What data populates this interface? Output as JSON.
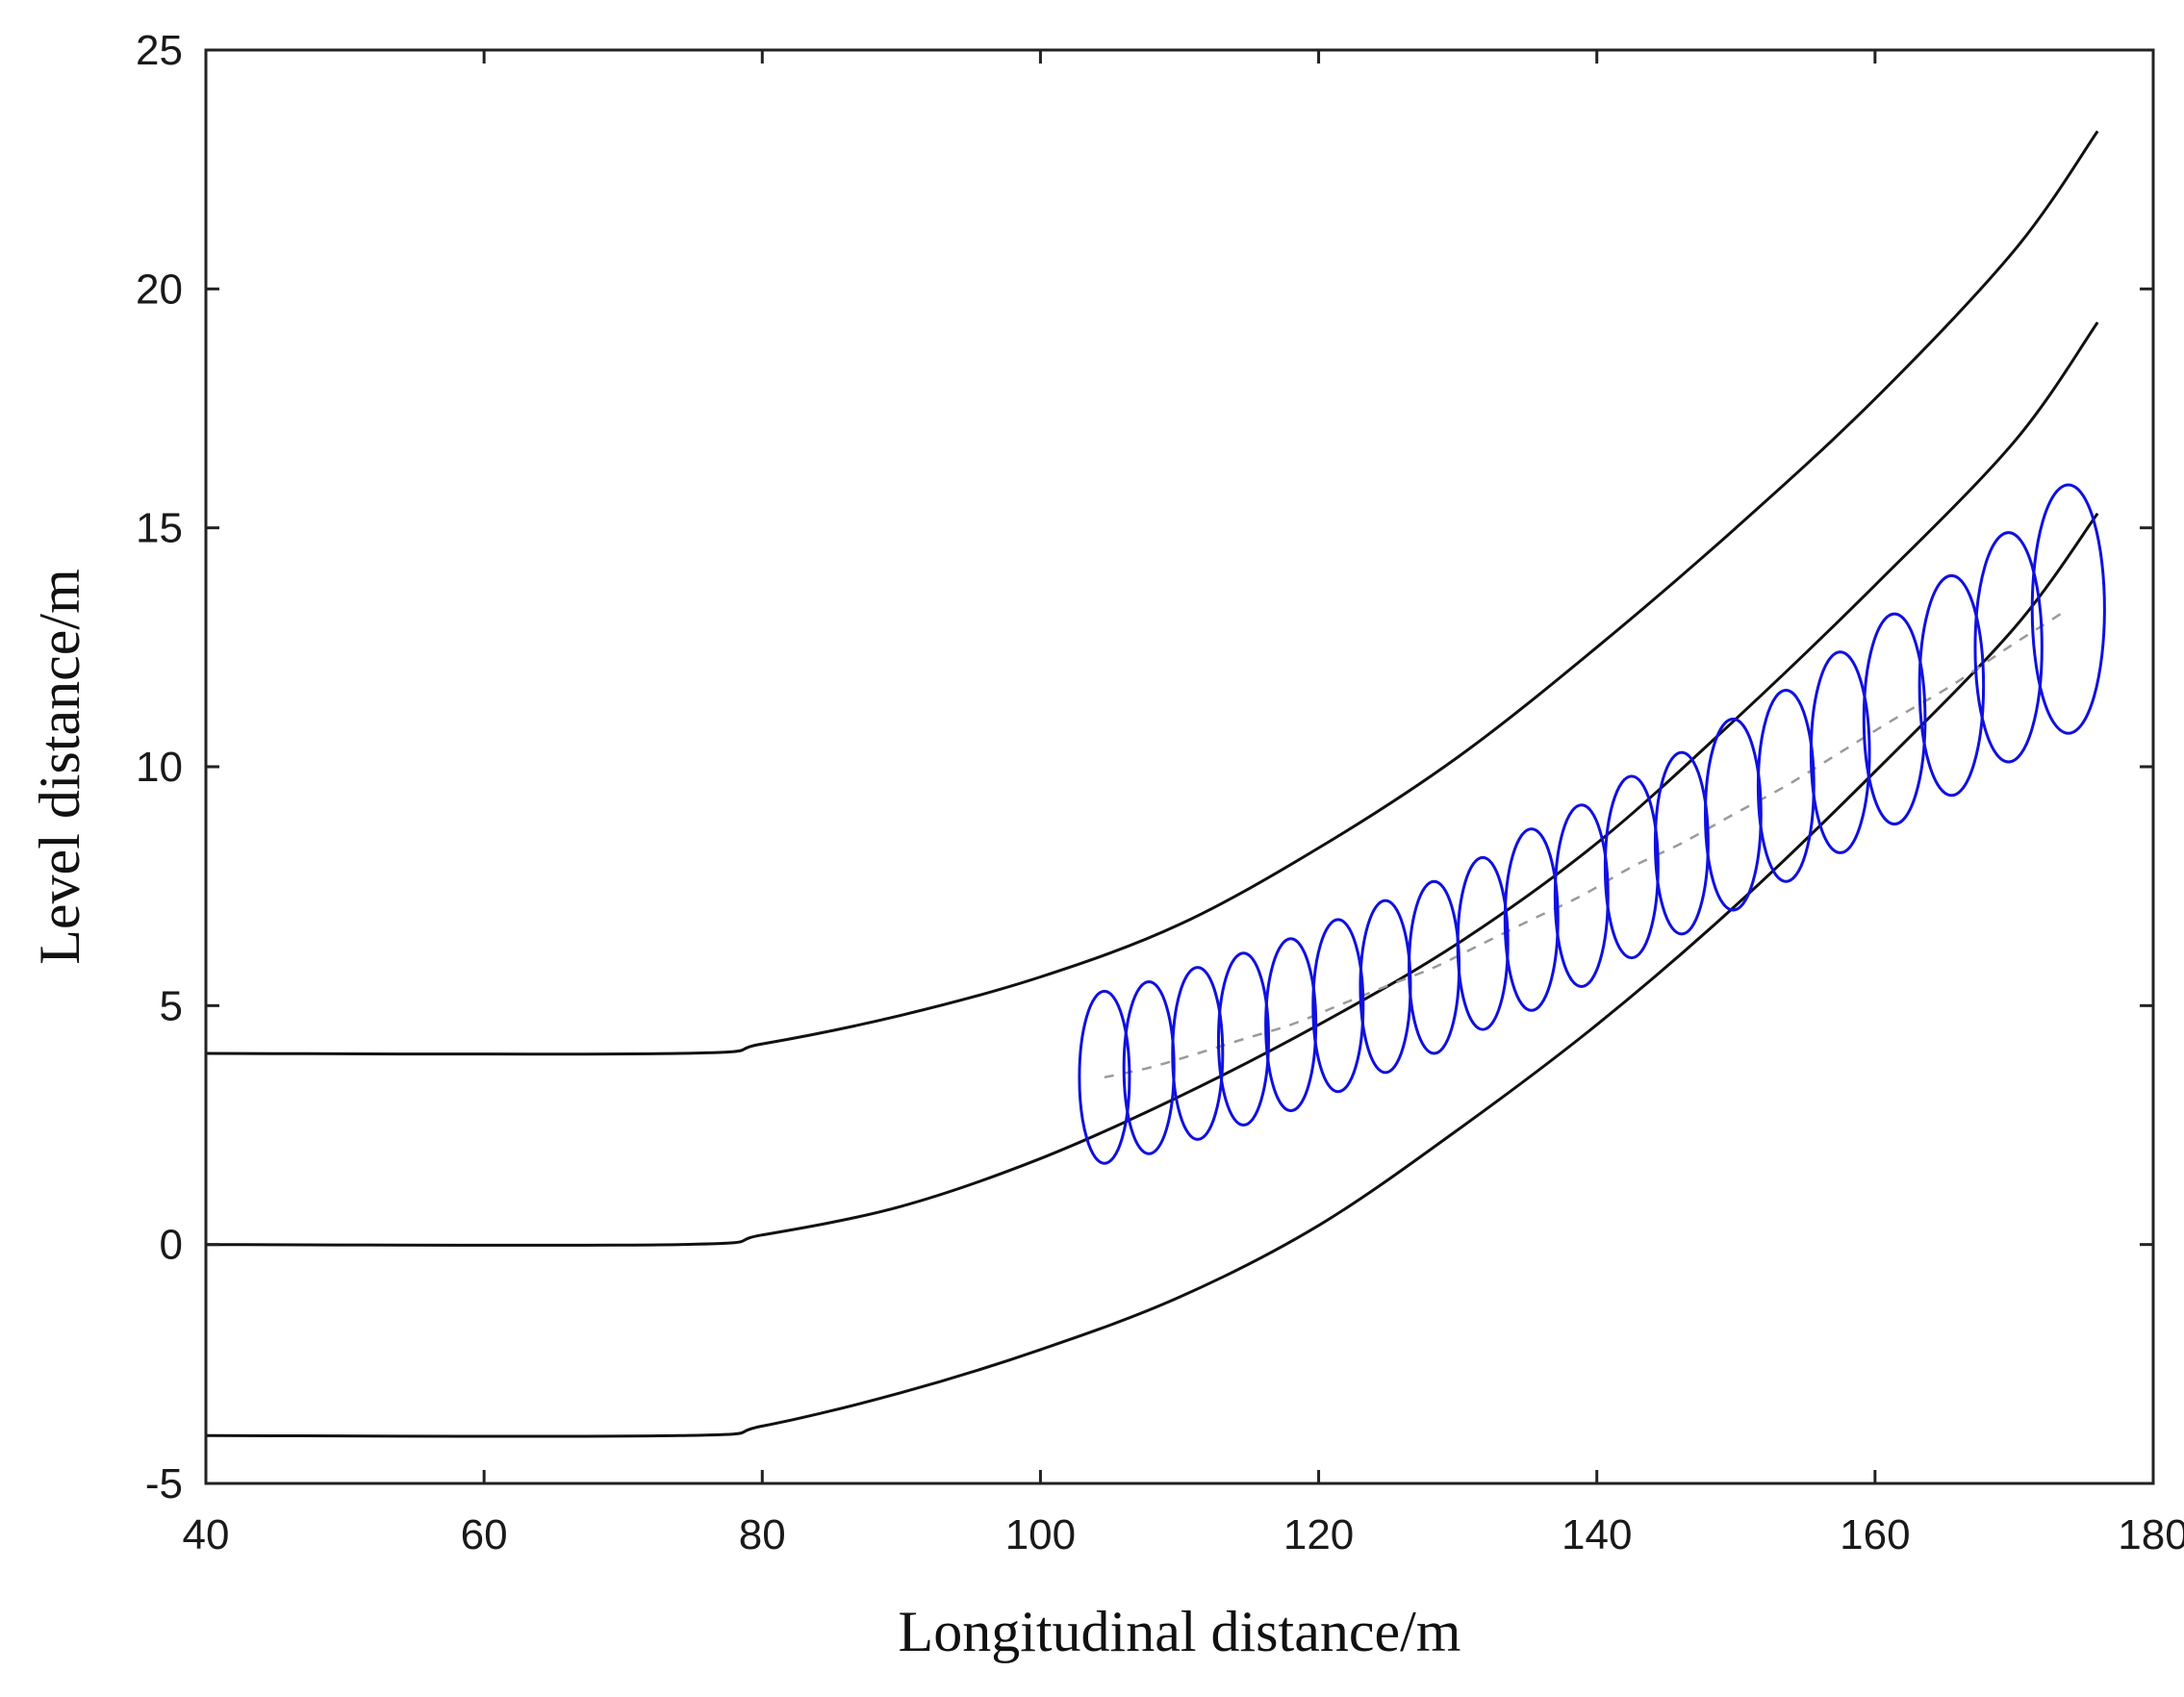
{
  "chart_data": {
    "type": "line",
    "title": "",
    "xlabel": "Longitudinal distance/m",
    "ylabel": "Level distance/m",
    "xlim": [
      40,
      180
    ],
    "ylim": [
      -5,
      25
    ],
    "xticks": [
      40,
      60,
      80,
      100,
      120,
      140,
      160,
      180
    ],
    "yticks": [
      -5,
      0,
      5,
      10,
      15,
      20,
      25
    ],
    "grid": false,
    "legend": "none",
    "colors": {
      "lanes": "#111111",
      "circles": "#1010e0",
      "path": "#9a9a9a",
      "axes": "#222222"
    },
    "lane_lines": [
      {
        "x": [
          40,
          74,
          80,
          90,
          100,
          110,
          120,
          130,
          140,
          150,
          160,
          170,
          176
        ],
        "y": [
          4,
          4,
          4.2,
          4.8,
          5.6,
          6.7,
          8.3,
          10.2,
          12.5,
          15.0,
          17.7,
          20.8,
          23.3
        ]
      },
      {
        "x": [
          40,
          74,
          80,
          90,
          100,
          110,
          120,
          130,
          140,
          150,
          160,
          170,
          176
        ],
        "y": [
          0,
          0,
          0.2,
          0.8,
          1.8,
          3.1,
          4.6,
          6.3,
          8.4,
          11.0,
          13.8,
          16.8,
          19.3
        ]
      },
      {
        "x": [
          40,
          74,
          80,
          90,
          100,
          110,
          120,
          130,
          140,
          150,
          160,
          170,
          176
        ],
        "y": [
          -4,
          -4,
          -3.8,
          -3.1,
          -2.2,
          -1.1,
          0.4,
          2.4,
          4.6,
          7.1,
          9.9,
          12.9,
          15.3
        ]
      }
    ],
    "trajectory_circles": [
      {
        "x": 104.6,
        "y": 3.5,
        "r": 1.8
      },
      {
        "x": 107.8,
        "y": 3.7,
        "r": 1.8
      },
      {
        "x": 111.3,
        "y": 4.0,
        "r": 1.8
      },
      {
        "x": 114.6,
        "y": 4.3,
        "r": 1.8
      },
      {
        "x": 118.0,
        "y": 4.6,
        "r": 1.8
      },
      {
        "x": 121.4,
        "y": 5.0,
        "r": 1.8
      },
      {
        "x": 124.8,
        "y": 5.4,
        "r": 1.8
      },
      {
        "x": 128.3,
        "y": 5.8,
        "r": 1.8
      },
      {
        "x": 131.8,
        "y": 6.3,
        "r": 1.8
      },
      {
        "x": 135.3,
        "y": 6.8,
        "r": 1.9
      },
      {
        "x": 138.9,
        "y": 7.3,
        "r": 1.9
      },
      {
        "x": 142.5,
        "y": 7.9,
        "r": 1.9
      },
      {
        "x": 146.1,
        "y": 8.4,
        "r": 1.9
      },
      {
        "x": 149.8,
        "y": 9.0,
        "r": 2.0
      },
      {
        "x": 153.6,
        "y": 9.6,
        "r": 2.0
      },
      {
        "x": 157.5,
        "y": 10.3,
        "r": 2.1
      },
      {
        "x": 161.4,
        "y": 11.0,
        "r": 2.2
      },
      {
        "x": 165.5,
        "y": 11.7,
        "r": 2.3
      },
      {
        "x": 169.6,
        "y": 12.5,
        "r": 2.4
      },
      {
        "x": 173.9,
        "y": 13.3,
        "r": 2.6
      }
    ]
  }
}
